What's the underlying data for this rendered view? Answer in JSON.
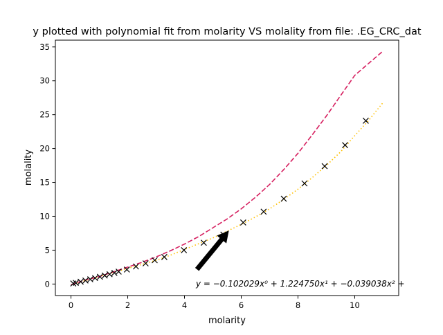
{
  "chart_data": {
    "type": "scatter",
    "title": "y plotted with polynomial fit from molarity VS molality from file: .EG_CRC_dat",
    "xlabel": "molarity",
    "ylabel": "molality",
    "xlim": [
      -0.55,
      11.55
    ],
    "ylim": [
      -1.7,
      36.0
    ],
    "xticks": [
      0,
      2,
      4,
      6,
      8,
      10
    ],
    "yticks": [
      0,
      5,
      10,
      15,
      20,
      25,
      30,
      35
    ],
    "grid": false,
    "legend": "none",
    "series": [
      {
        "kind": "markers",
        "marker": "x",
        "color": "#000000",
        "x": [
          0.08,
          0.17,
          0.34,
          0.51,
          0.68,
          0.85,
          1.02,
          1.19,
          1.36,
          1.53,
          1.68,
          1.97,
          2.29,
          2.63,
          2.95,
          3.29,
          3.98,
          4.68,
          5.37,
          6.07,
          6.79,
          7.5,
          8.23,
          8.94,
          9.66,
          10.39
        ],
        "y": [
          0.08,
          0.17,
          0.34,
          0.52,
          0.7,
          0.88,
          1.07,
          1.26,
          1.45,
          1.64,
          1.83,
          2.14,
          2.59,
          3.05,
          3.51,
          3.99,
          5.0,
          6.1,
          7.3,
          9.09,
          10.68,
          12.6,
          14.85,
          17.4,
          20.5,
          24.1
        ]
      },
      {
        "kind": "line",
        "style": "dotted",
        "color": "#ffc000",
        "x": [
          0,
          0.5,
          1,
          1.5,
          2,
          2.5,
          3,
          3.5,
          4,
          4.5,
          5,
          5.5,
          6,
          6.5,
          7,
          7.5,
          8,
          8.5,
          9,
          9.5,
          10,
          10.5,
          11
        ],
        "y": [
          -0.1,
          0.5,
          1.1,
          1.7,
          2.3,
          2.9,
          3.5,
          4.25,
          5.1,
          5.95,
          6.8,
          7.8,
          8.8,
          9.9,
          11.1,
          12.5,
          14.0,
          15.7,
          17.5,
          19.5,
          21.9,
          24.2,
          26.8
        ]
      },
      {
        "kind": "line",
        "style": "dashed",
        "color": "#d62060",
        "x": [
          0,
          0.5,
          1,
          1.5,
          2,
          2.5,
          3,
          3.5,
          4,
          4.5,
          5,
          5.5,
          6,
          6.5,
          7,
          7.5,
          8,
          8.5,
          9,
          9.5,
          10,
          10.5,
          11
        ],
        "y": [
          -0.1,
          0.6,
          1.1,
          1.8,
          2.5,
          3.2,
          4.0,
          4.9,
          5.9,
          7.0,
          8.3,
          9.6,
          11.1,
          12.8,
          14.7,
          16.9,
          19.3,
          22.0,
          24.8,
          27.8,
          30.8,
          32.6,
          34.4
        ]
      }
    ],
    "annotation": {
      "text": "y = −0.102029x⁰ + 1.224750x¹ + −0.039038x² +",
      "arrow_from": [
        4.45,
        2.2
      ],
      "arrow_to": [
        5.55,
        7.8
      ]
    }
  }
}
